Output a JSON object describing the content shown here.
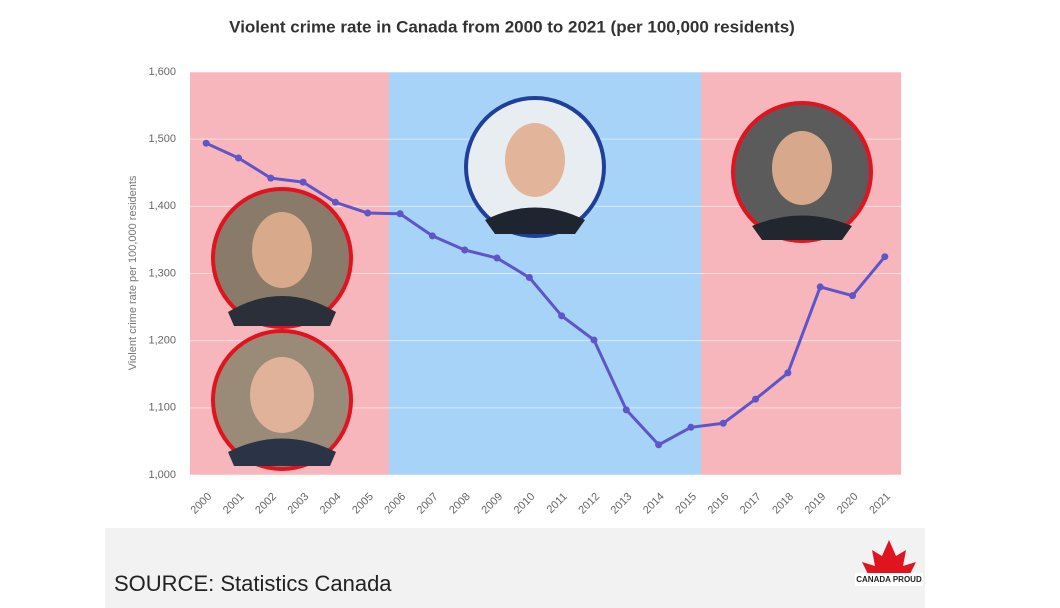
{
  "chart_data": {
    "type": "line",
    "title": "Violent crime rate in Canada from 2000 to 2021 (per 100,000 residents)",
    "y_label": "Violent crime rate per 100,000 residents",
    "source": "SOURCE: Statistics Canada",
    "logo": "CANADA PROUD",
    "categories": [
      "2000",
      "2001",
      "2002",
      "2003",
      "2004",
      "2005",
      "2006",
      "2007",
      "2008",
      "2009",
      "2010",
      "2011",
      "2012",
      "2013",
      "2014",
      "2015",
      "2016",
      "2017",
      "2018",
      "2019",
      "2020",
      "2021"
    ],
    "series": [
      {
        "color": "#5f55c8",
        "values": [
          1494,
          1472,
          1442,
          1436,
          1406,
          1390,
          1389,
          1356,
          1335,
          1323,
          1294,
          1237,
          1201,
          1097,
          1045,
          1071,
          1077,
          1113,
          1152,
          1280,
          1267,
          1325
        ]
      }
    ],
    "ylim": [
      1000,
      1600
    ],
    "yticks": [
      {
        "value": 1000,
        "label": "1,000"
      },
      {
        "value": 1100,
        "label": "1,100"
      },
      {
        "value": 1200,
        "label": "1,200"
      },
      {
        "value": 1300,
        "label": "1,300"
      },
      {
        "value": 1400,
        "label": "1,400"
      },
      {
        "value": 1500,
        "label": "1,500"
      },
      {
        "value": 1600,
        "label": "1,600"
      }
    ],
    "grid": true
  }
}
